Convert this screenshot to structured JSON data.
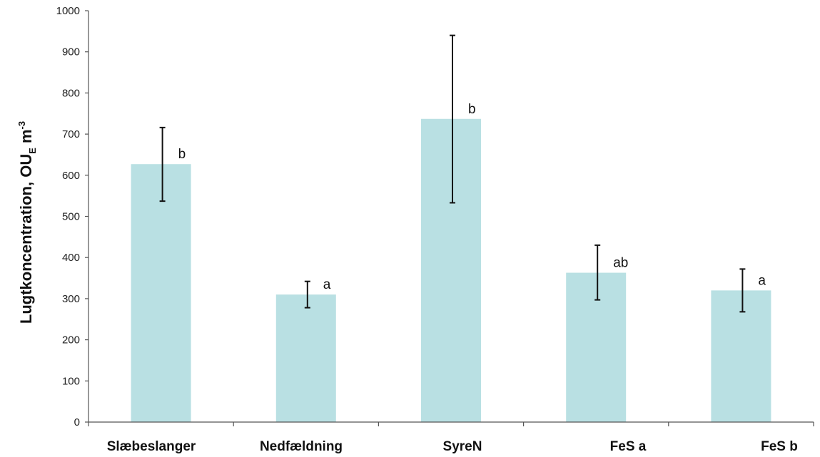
{
  "chart_data": {
    "type": "bar",
    "title": "",
    "xlabel": "",
    "ylabel": {
      "main": "Lugtkoncentration, OU",
      "subscript": "E",
      "unit": " m",
      "superscript": "-3"
    },
    "ylim": [
      0,
      1000
    ],
    "yticks": [
      0,
      100,
      200,
      300,
      400,
      500,
      600,
      700,
      800,
      900,
      1000
    ],
    "grid": false,
    "legend": "none",
    "categories": [
      "Slæbeslanger",
      "Nedfældning",
      "SyreN",
      "FeS a",
      "FeS b"
    ],
    "values": [
      627,
      310,
      737,
      363,
      320
    ],
    "error_low": [
      537,
      278,
      533,
      297,
      268
    ],
    "error_high": [
      716,
      342,
      940,
      430,
      372
    ],
    "significance_letters": [
      "b",
      "a",
      "b",
      "ab",
      "a"
    ],
    "colors": {
      "bar": "#b9e0e3",
      "error_bar": "#111111",
      "axis": "#555555"
    }
  }
}
